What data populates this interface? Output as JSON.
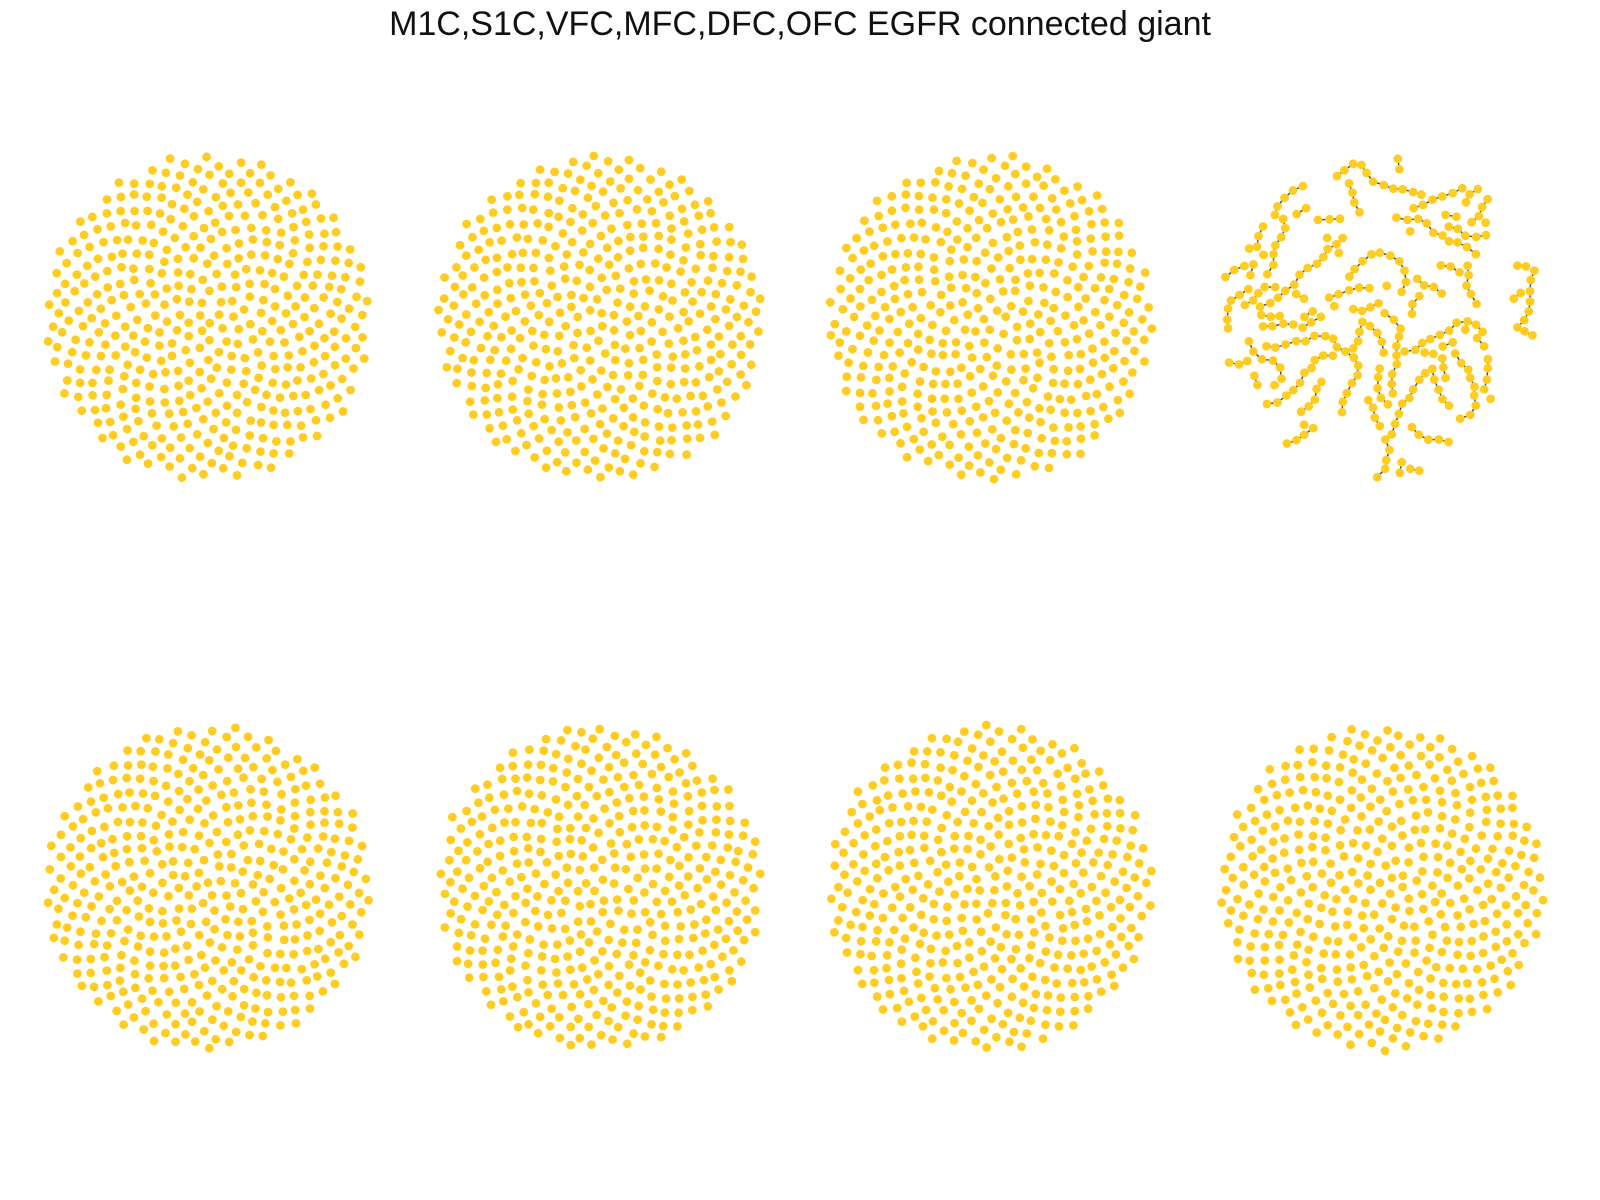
{
  "title": "M1C,S1C,VFC,MFC,DFC,OFC EGFR connected giant",
  "colors": {
    "node": "#FFCC22",
    "edge": "#2B4A5C",
    "background": "#FFFFFF"
  },
  "chart_data": {
    "type": "network-grid",
    "layout": "2 rows x 4 columns",
    "panels": [
      {
        "row": 1,
        "col": 1,
        "edges_visible": false
      },
      {
        "row": 1,
        "col": 2,
        "edges_visible": false
      },
      {
        "row": 1,
        "col": 3,
        "edges_visible": false
      },
      {
        "row": 1,
        "col": 4,
        "edges_visible": true
      },
      {
        "row": 2,
        "col": 1,
        "edges_visible": false
      },
      {
        "row": 2,
        "col": 2,
        "edges_visible": false
      },
      {
        "row": 2,
        "col": 3,
        "edges_visible": false
      },
      {
        "row": 2,
        "col": 4,
        "edges_visible": false
      }
    ]
  }
}
